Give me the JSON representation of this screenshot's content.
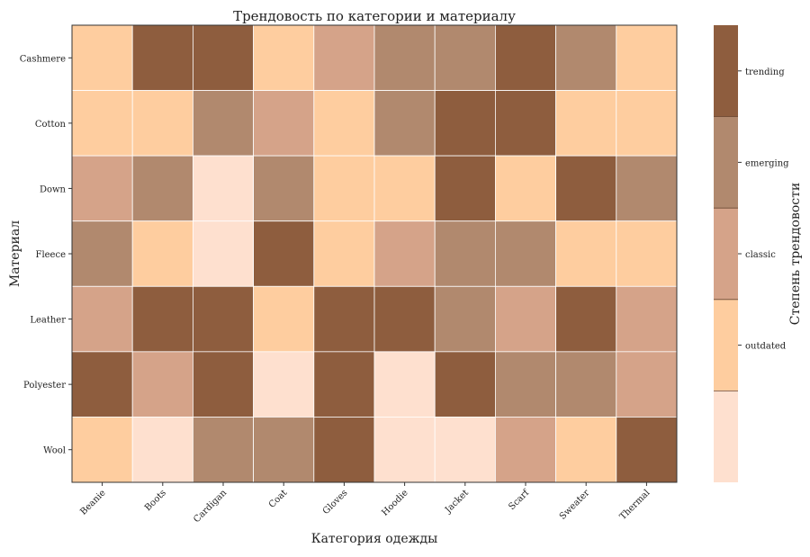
{
  "chart_data": {
    "type": "heatmap",
    "title": "Трендовость по категории и материалу",
    "xlabel": "Категория одежды",
    "ylabel": "Материал",
    "x_categories": [
      "Beanie",
      "Boots",
      "Cardigan",
      "Coat",
      "Gloves",
      "Hoodie",
      "Jacket",
      "Scarf",
      "Sweater",
      "Thermal"
    ],
    "y_categories": [
      "Cashmere",
      "Cotton",
      "Down",
      "Fleece",
      "Leather",
      "Polyester",
      "Wool"
    ],
    "values": [
      [
        1,
        4,
        4,
        1,
        2,
        3,
        3,
        4,
        3,
        1
      ],
      [
        1,
        1,
        3,
        2,
        1,
        3,
        4,
        4,
        1,
        1
      ],
      [
        2,
        3,
        0,
        3,
        1,
        1,
        4,
        1,
        4,
        3
      ],
      [
        3,
        1,
        0,
        4,
        1,
        2,
        3,
        3,
        1,
        1
      ],
      [
        2,
        4,
        4,
        1,
        4,
        4,
        3,
        2,
        4,
        2
      ],
      [
        4,
        2,
        4,
        0,
        4,
        0,
        4,
        3,
        3,
        2
      ],
      [
        1,
        0,
        3,
        3,
        4,
        0,
        0,
        2,
        1,
        4
      ]
    ],
    "colorbar": {
      "label": "Степень трендовости",
      "levels": [
        0,
        1,
        2,
        3,
        4
      ],
      "tick_labels": [
        "",
        "outdated",
        "classic",
        "emerging",
        "trending"
      ],
      "colors": [
        "#fee0cf",
        "#fecd9f",
        "#d5a389",
        "#b1896e",
        "#8e5d3e"
      ]
    },
    "grid": false
  }
}
